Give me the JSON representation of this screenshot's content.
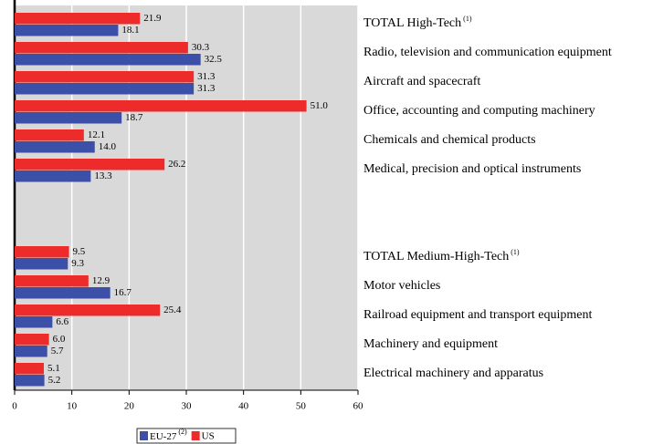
{
  "chart_data": {
    "type": "hbar",
    "categories": [
      "TOTAL High-Tech (1)",
      "Radio, television and communication equipment",
      "Aircraft and spacecraft",
      "Office, accounting and computing machinery",
      "Chemicals and chemical products",
      "Medical, precision and optical instruments",
      null,
      null,
      "TOTAL Medium-High-Tech (1)",
      "Motor vehicles",
      "Railroad equipment and transport equipment",
      "Machinery and equipment",
      "Electrical machinery and apparatus"
    ],
    "series": [
      {
        "name": "EU-27 (2)",
        "color": "#3c50a8",
        "values": [
          18.1,
          32.5,
          31.3,
          18.7,
          14.0,
          13.3,
          null,
          null,
          9.3,
          16.7,
          6.6,
          5.7,
          5.2
        ],
        "value_labels": [
          "18.1",
          "32.5",
          "31.3",
          "18.7",
          "14.0",
          "13.3",
          null,
          null,
          "9.3",
          "16.7",
          "6.6",
          "5.7",
          "5.2"
        ]
      },
      {
        "name": "US",
        "color": "#ee2b2b",
        "values": [
          21.9,
          30.3,
          31.3,
          51.0,
          12.1,
          26.2,
          null,
          null,
          9.5,
          12.9,
          25.4,
          6.0,
          5.1
        ],
        "value_labels": [
          "21.9",
          "30.3",
          "31.3",
          "51.0",
          "12.1",
          "26.2",
          null,
          null,
          "9.5",
          "12.9",
          "25.4",
          "6.0",
          "5.1"
        ]
      }
    ],
    "xlim": [
      0,
      60
    ],
    "xticks": [
      0,
      10,
      20,
      30,
      40,
      50,
      60
    ],
    "grid": true,
    "legend": "bottom"
  }
}
